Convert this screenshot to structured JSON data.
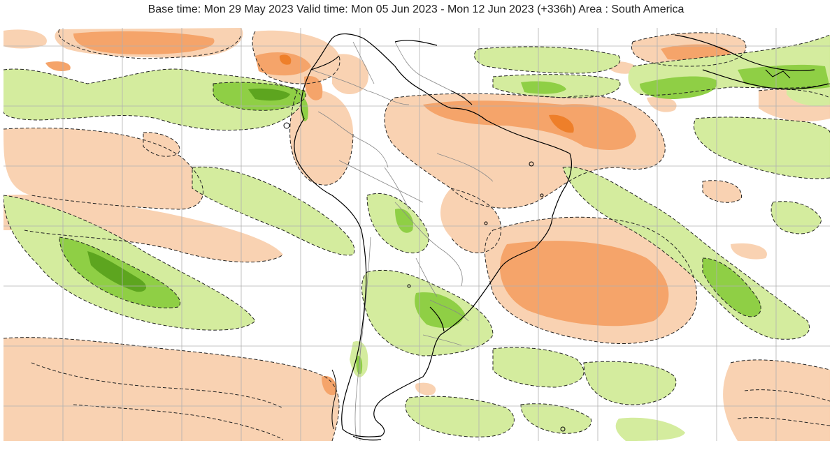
{
  "title": "Base time: Mon 29 May 2023 Valid time: Mon 05 Jun 2023 - Mon 12 Jun 2023 (+336h) Area : South America",
  "map": {
    "region": "South America",
    "projection": "equirectangular",
    "gridlines": true,
    "anomaly_colors": {
      "positive_light": "#d4ec9e",
      "positive_medium": "#8fcf45",
      "positive_strong": "#5da51f",
      "negative_light": "#f9d2b2",
      "negative_medium": "#f5a46a",
      "negative_strong": "#ee7f2a",
      "dashed_contour": "#222222",
      "grid": "#b0b0b0",
      "coastline": "#000000",
      "borders": "#888888"
    }
  }
}
